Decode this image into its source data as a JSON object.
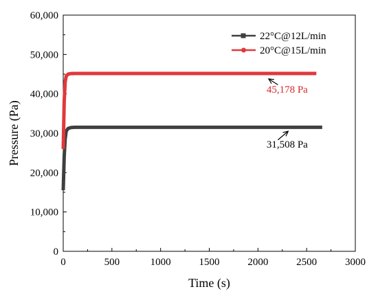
{
  "chart_data": {
    "type": "line",
    "title": "",
    "xlabel": "Time (s)",
    "ylabel": "Pressure (Pa)",
    "xlim": [
      0,
      3000
    ],
    "ylim": [
      0,
      60000
    ],
    "xticks": [
      0,
      500,
      1000,
      1500,
      2000,
      2500,
      3000
    ],
    "xtick_labels": [
      "0",
      "500",
      "1000",
      "1500",
      "2000",
      "2500",
      "3000"
    ],
    "yticks": [
      0,
      10000,
      20000,
      30000,
      40000,
      50000,
      60000
    ],
    "ytick_labels": [
      "0",
      "10,000",
      "20,000",
      "30,000",
      "40,000",
      "50,000",
      "60,000"
    ],
    "grid": false,
    "legend_position": "top-right",
    "series": [
      {
        "name": "22°C@12L/min",
        "color": "#3f3f3f",
        "x": [
          0,
          10,
          20,
          30,
          50,
          80,
          120,
          200,
          400,
          1000,
          2000,
          2660
        ],
        "y": [
          15500,
          24000,
          28500,
          30500,
          31200,
          31450,
          31500,
          31508,
          31508,
          31508,
          31508,
          31508
        ]
      },
      {
        "name": "20°C@15L/min",
        "color": "#e0393b",
        "x": [
          0,
          10,
          20,
          30,
          50,
          80,
          120,
          200,
          400,
          1000,
          2000,
          2600
        ],
        "y": [
          26000,
          38000,
          43000,
          44500,
          45000,
          45150,
          45178,
          45178,
          45178,
          45178,
          45178,
          45178
        ]
      }
    ],
    "annotations": [
      {
        "text": "45,178 Pa",
        "color": "#d62728",
        "x": 2300,
        "y": 40300,
        "arrow_to": [
          2110,
          43800
        ]
      },
      {
        "text": "31,508 Pa",
        "color": "#000000",
        "x": 2300,
        "y": 26300,
        "arrow_to": [
          2310,
          30500
        ]
      }
    ]
  }
}
